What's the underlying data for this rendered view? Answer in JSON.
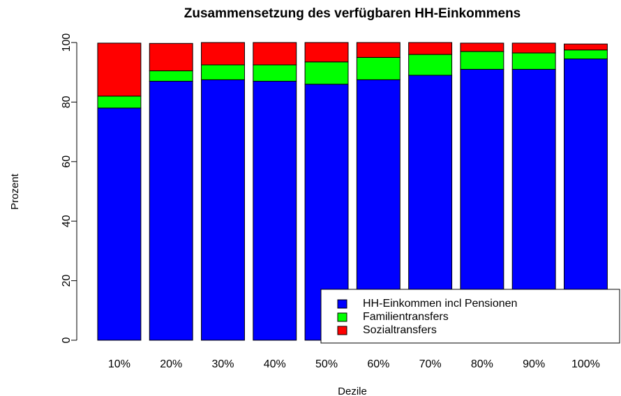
{
  "chart_data": {
    "type": "bar",
    "stacked": true,
    "title": "Zusammensetzung des verfügbaren HH-Einkommens",
    "x_label": "Dezile",
    "y_label": "Prozent",
    "categories": [
      "10%",
      "20%",
      "30%",
      "40%",
      "50%",
      "60%",
      "70%",
      "80%",
      "90%",
      "100%"
    ],
    "series": [
      {
        "name": "HH-Einkommen incl Pensionen",
        "color": "#0000ff",
        "values": [
          78,
          87,
          87.5,
          87,
          86,
          87.5,
          89,
          91,
          91,
          94.5
        ]
      },
      {
        "name": "Familientransfers",
        "color": "#00ff00",
        "values": [
          4,
          3.5,
          5,
          5.5,
          7.5,
          7.5,
          7,
          6,
          5.5,
          3
        ]
      },
      {
        "name": "Sozialtransfers",
        "color": "#ff0000",
        "values": [
          17.8,
          9.2,
          7.5,
          7.5,
          6.5,
          5,
          4,
          2.8,
          3.3,
          2
        ]
      }
    ],
    "ylim": [
      0,
      100
    ],
    "yticks": [
      0,
      20,
      40,
      60,
      80,
      100
    ],
    "legend": "bottomright"
  }
}
